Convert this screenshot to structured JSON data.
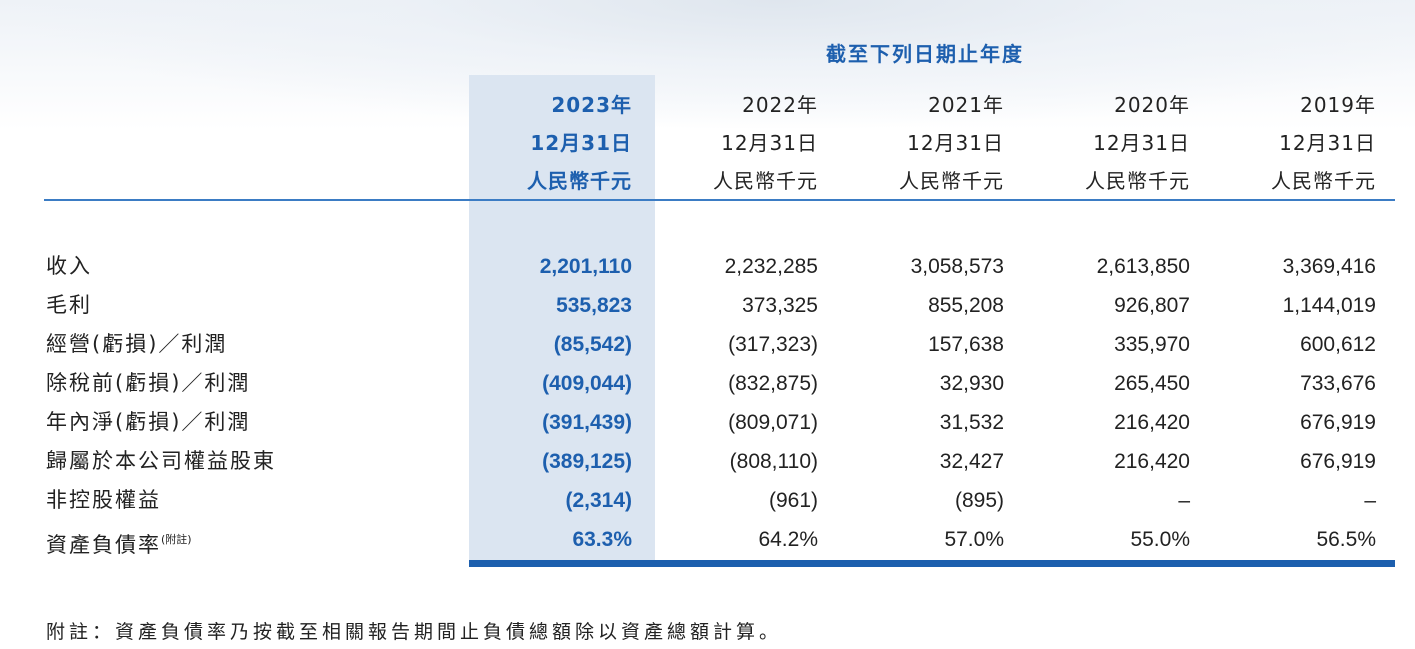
{
  "period_title": "截至下列日期止年度",
  "columns": [
    {
      "year": "2023年",
      "date": "12月31日",
      "unit": "人民幣千元"
    },
    {
      "year": "2022年",
      "date": "12月31日",
      "unit": "人民幣千元"
    },
    {
      "year": "2021年",
      "date": "12月31日",
      "unit": "人民幣千元"
    },
    {
      "year": "2020年",
      "date": "12月31日",
      "unit": "人民幣千元"
    },
    {
      "year": "2019年",
      "date": "12月31日",
      "unit": "人民幣千元"
    }
  ],
  "rows": [
    {
      "label": "收入",
      "values": [
        "2,201,110",
        "2,232,285",
        "3,058,573",
        "2,613,850",
        "3,369,416"
      ]
    },
    {
      "label": "毛利",
      "values": [
        "535,823",
        "373,325",
        "855,208",
        "926,807",
        "1,144,019"
      ]
    },
    {
      "label": "經營(虧損)／利潤",
      "values": [
        "(85,542)",
        "(317,323)",
        "157,638",
        "335,970",
        "600,612"
      ]
    },
    {
      "label": "除稅前(虧損)／利潤",
      "values": [
        "(409,044)",
        "(832,875)",
        "32,930",
        "265,450",
        "733,676"
      ]
    },
    {
      "label": "年內淨(虧損)／利潤",
      "values": [
        "(391,439)",
        "(809,071)",
        "31,532",
        "216,420",
        "676,919"
      ]
    },
    {
      "label": "歸屬於本公司權益股東",
      "values": [
        "(389,125)",
        "(808,110)",
        "32,427",
        "216,420",
        "676,919"
      ]
    },
    {
      "label": "非控股權益",
      "values": [
        "(2,314)",
        "(961)",
        "(895)",
        "–",
        "–"
      ]
    },
    {
      "label": "資產負債率",
      "note_mark": "(附註)",
      "values": [
        "63.3%",
        "64.2%",
        "57.0%",
        "55.0%",
        "56.5%"
      ]
    }
  ],
  "footnote": "附註：資產負債率乃按截至相關報告期間止負債總額除以資產總額計算。"
}
